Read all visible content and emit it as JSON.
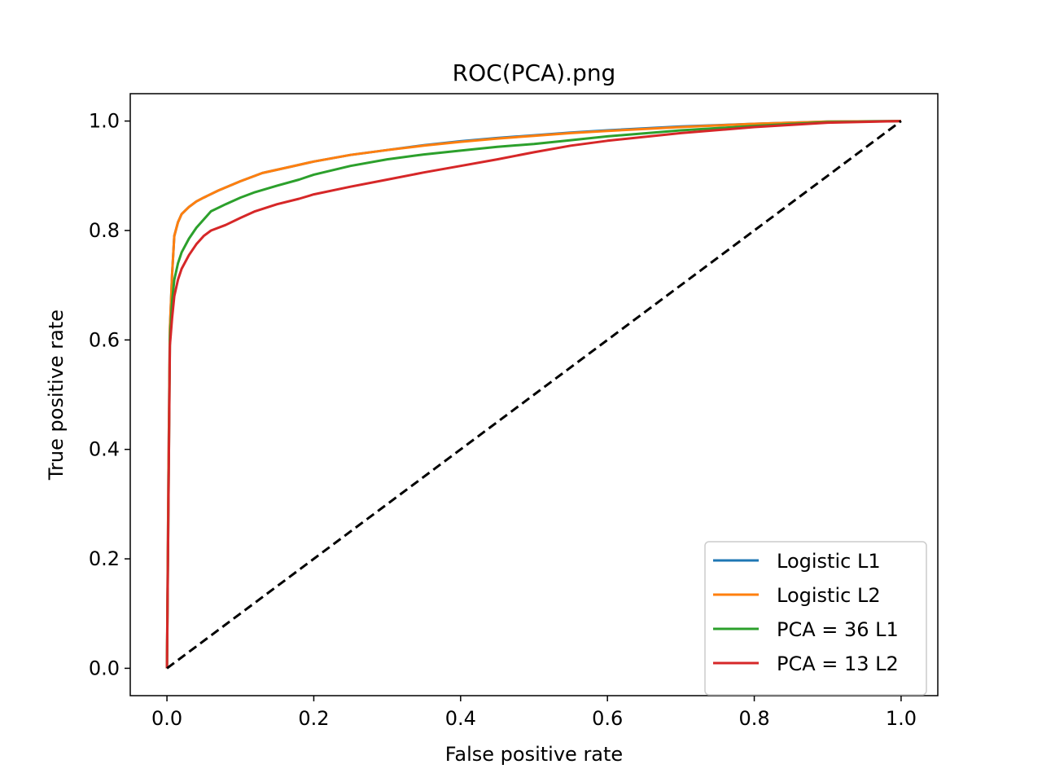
{
  "chart_data": {
    "type": "line",
    "title": "ROC(PCA).png",
    "xlabel": "False positive rate",
    "ylabel": "True positive rate",
    "xlim": [
      -0.05,
      1.05
    ],
    "ylim": [
      -0.05,
      1.05
    ],
    "xticks": [
      0.0,
      0.2,
      0.4,
      0.6,
      0.8,
      1.0
    ],
    "xtick_labels": [
      "0.0",
      "0.2",
      "0.4",
      "0.6",
      "0.8",
      "1.0"
    ],
    "yticks": [
      0.0,
      0.2,
      0.4,
      0.6,
      0.8,
      1.0
    ],
    "ytick_labels": [
      "0.0",
      "0.2",
      "0.4",
      "0.6",
      "0.8",
      "1.0"
    ],
    "grid": false,
    "legend_position": "lower-right",
    "series": [
      {
        "name": "Logistic L1",
        "color": "#1f77b4",
        "x": [
          0.0,
          0.002,
          0.004,
          0.007,
          0.01,
          0.015,
          0.02,
          0.03,
          0.04,
          0.05,
          0.07,
          0.1,
          0.13,
          0.17,
          0.2,
          0.25,
          0.3,
          0.35,
          0.4,
          0.45,
          0.5,
          0.55,
          0.6,
          0.7,
          0.8,
          0.9,
          1.0
        ],
        "y": [
          0.0,
          0.35,
          0.62,
          0.72,
          0.79,
          0.815,
          0.83,
          0.843,
          0.853,
          0.86,
          0.873,
          0.89,
          0.905,
          0.917,
          0.926,
          0.938,
          0.947,
          0.956,
          0.963,
          0.969,
          0.974,
          0.979,
          0.983,
          0.99,
          0.995,
          0.999,
          1.0
        ]
      },
      {
        "name": "Logistic L2",
        "color": "#ff7f0e",
        "x": [
          0.0,
          0.002,
          0.004,
          0.007,
          0.01,
          0.015,
          0.02,
          0.03,
          0.04,
          0.05,
          0.07,
          0.1,
          0.13,
          0.17,
          0.2,
          0.25,
          0.3,
          0.35,
          0.4,
          0.45,
          0.5,
          0.55,
          0.6,
          0.7,
          0.8,
          0.9,
          1.0
        ],
        "y": [
          0.0,
          0.35,
          0.62,
          0.72,
          0.79,
          0.815,
          0.83,
          0.843,
          0.853,
          0.86,
          0.873,
          0.89,
          0.905,
          0.917,
          0.926,
          0.938,
          0.947,
          0.955,
          0.962,
          0.968,
          0.973,
          0.978,
          0.982,
          0.989,
          0.995,
          0.999,
          1.0
        ]
      },
      {
        "name": "PCA = 36 L1",
        "color": "#2ca02c",
        "x": [
          0.0,
          0.002,
          0.004,
          0.007,
          0.01,
          0.015,
          0.02,
          0.03,
          0.04,
          0.05,
          0.06,
          0.08,
          0.1,
          0.12,
          0.15,
          0.18,
          0.2,
          0.25,
          0.3,
          0.35,
          0.4,
          0.45,
          0.5,
          0.55,
          0.6,
          0.7,
          0.8,
          0.9,
          1.0
        ],
        "y": [
          0.0,
          0.3,
          0.6,
          0.67,
          0.71,
          0.74,
          0.76,
          0.785,
          0.805,
          0.82,
          0.835,
          0.848,
          0.86,
          0.87,
          0.882,
          0.893,
          0.902,
          0.918,
          0.93,
          0.939,
          0.946,
          0.953,
          0.958,
          0.965,
          0.972,
          0.983,
          0.991,
          0.998,
          1.0
        ]
      },
      {
        "name": "PCA = 13 L2",
        "color": "#d62728",
        "x": [
          0.0,
          0.002,
          0.004,
          0.007,
          0.01,
          0.015,
          0.02,
          0.03,
          0.04,
          0.05,
          0.06,
          0.08,
          0.1,
          0.12,
          0.15,
          0.18,
          0.2,
          0.25,
          0.3,
          0.35,
          0.4,
          0.45,
          0.5,
          0.55,
          0.6,
          0.7,
          0.8,
          0.9,
          1.0
        ],
        "y": [
          0.0,
          0.3,
          0.59,
          0.64,
          0.68,
          0.71,
          0.73,
          0.755,
          0.775,
          0.79,
          0.8,
          0.81,
          0.823,
          0.835,
          0.848,
          0.858,
          0.866,
          0.88,
          0.893,
          0.906,
          0.918,
          0.93,
          0.943,
          0.955,
          0.964,
          0.978,
          0.989,
          0.997,
          1.0
        ]
      },
      {
        "name": "",
        "color": "#000000",
        "dashed": true,
        "in_legend": false,
        "x": [
          0.0,
          1.0
        ],
        "y": [
          0.0,
          1.0
        ]
      }
    ]
  }
}
